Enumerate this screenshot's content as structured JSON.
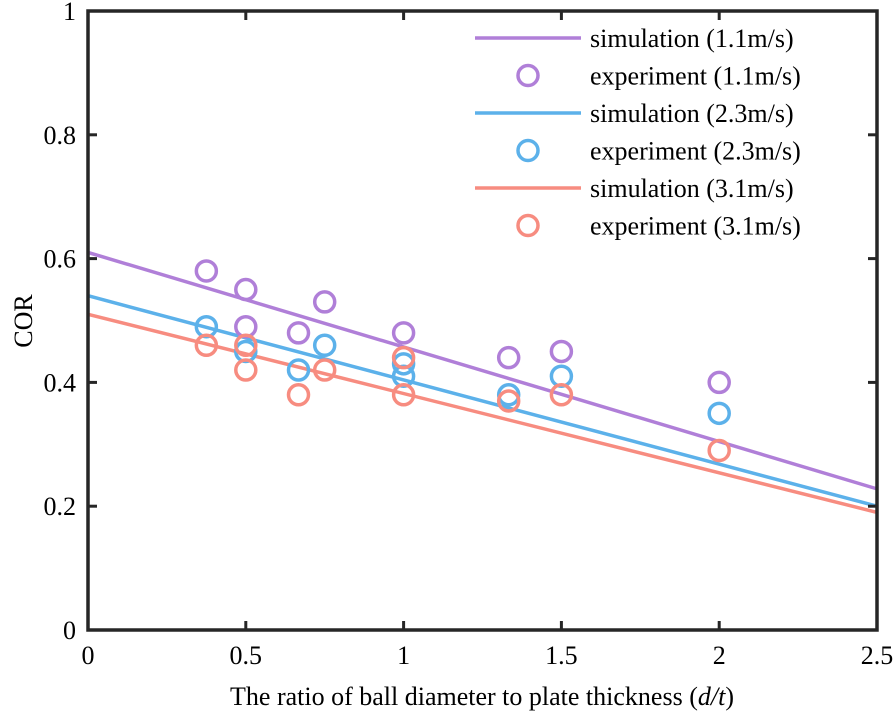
{
  "chart_data": {
    "type": "scatter",
    "title": "",
    "xlabel": "The ratio of ball diameter to plate thickness (",
    "xlabel_italic": "d/t",
    "xlabel_end": ")",
    "ylabel": "COR",
    "xlim": [
      0,
      2.5
    ],
    "ylim": [
      0,
      1
    ],
    "xticks": [
      0,
      0.5,
      1,
      1.5,
      2,
      2.5
    ],
    "xtick_labels": [
      "0",
      "0.5",
      "1",
      "1.5",
      "2",
      "2.5"
    ],
    "yticks": [
      0,
      0.2,
      0.4,
      0.6,
      0.8,
      1
    ],
    "ytick_labels": [
      "0",
      "0.2",
      "0.4",
      "0.6",
      "0.8",
      "1"
    ],
    "grid": false,
    "legend_position": "top-right",
    "series": [
      {
        "name": "simulation (1.1m/s)",
        "kind": "line",
        "color": "#b07fd8",
        "x": [
          0,
          2.5
        ],
        "y": [
          0.61,
          0.228
        ]
      },
      {
        "name": "experiment (1.1m/s)",
        "kind": "marker",
        "color": "#b07fd8",
        "x": [
          0.375,
          0.5,
          0.5,
          0.667,
          0.75,
          1,
          1.333,
          1.5,
          2
        ],
        "y": [
          0.58,
          0.55,
          0.49,
          0.48,
          0.53,
          0.48,
          0.44,
          0.45,
          0.4
        ]
      },
      {
        "name": "simulation (2.3m/s)",
        "kind": "line",
        "color": "#5cb1ea",
        "x": [
          0,
          2.5
        ],
        "y": [
          0.54,
          0.2
        ]
      },
      {
        "name": "experiment (2.3m/s)",
        "kind": "marker",
        "color": "#5cb1ea",
        "x": [
          0.375,
          0.5,
          0.667,
          0.75,
          1,
          1,
          1.333,
          1.5,
          2
        ],
        "y": [
          0.49,
          0.45,
          0.42,
          0.46,
          0.43,
          0.41,
          0.38,
          0.41,
          0.35
        ]
      },
      {
        "name": "simulation (3.1m/s)",
        "kind": "line",
        "color": "#f78c80",
        "x": [
          0,
          2.5
        ],
        "y": [
          0.51,
          0.19
        ]
      },
      {
        "name": "experiment (3.1m/s)",
        "kind": "marker",
        "color": "#f78c80",
        "x": [
          0.375,
          0.5,
          0.5,
          0.667,
          0.75,
          1,
          1,
          1.333,
          1.5,
          2
        ],
        "y": [
          0.46,
          0.46,
          0.42,
          0.38,
          0.42,
          0.44,
          0.38,
          0.37,
          0.38,
          0.29
        ]
      }
    ]
  }
}
